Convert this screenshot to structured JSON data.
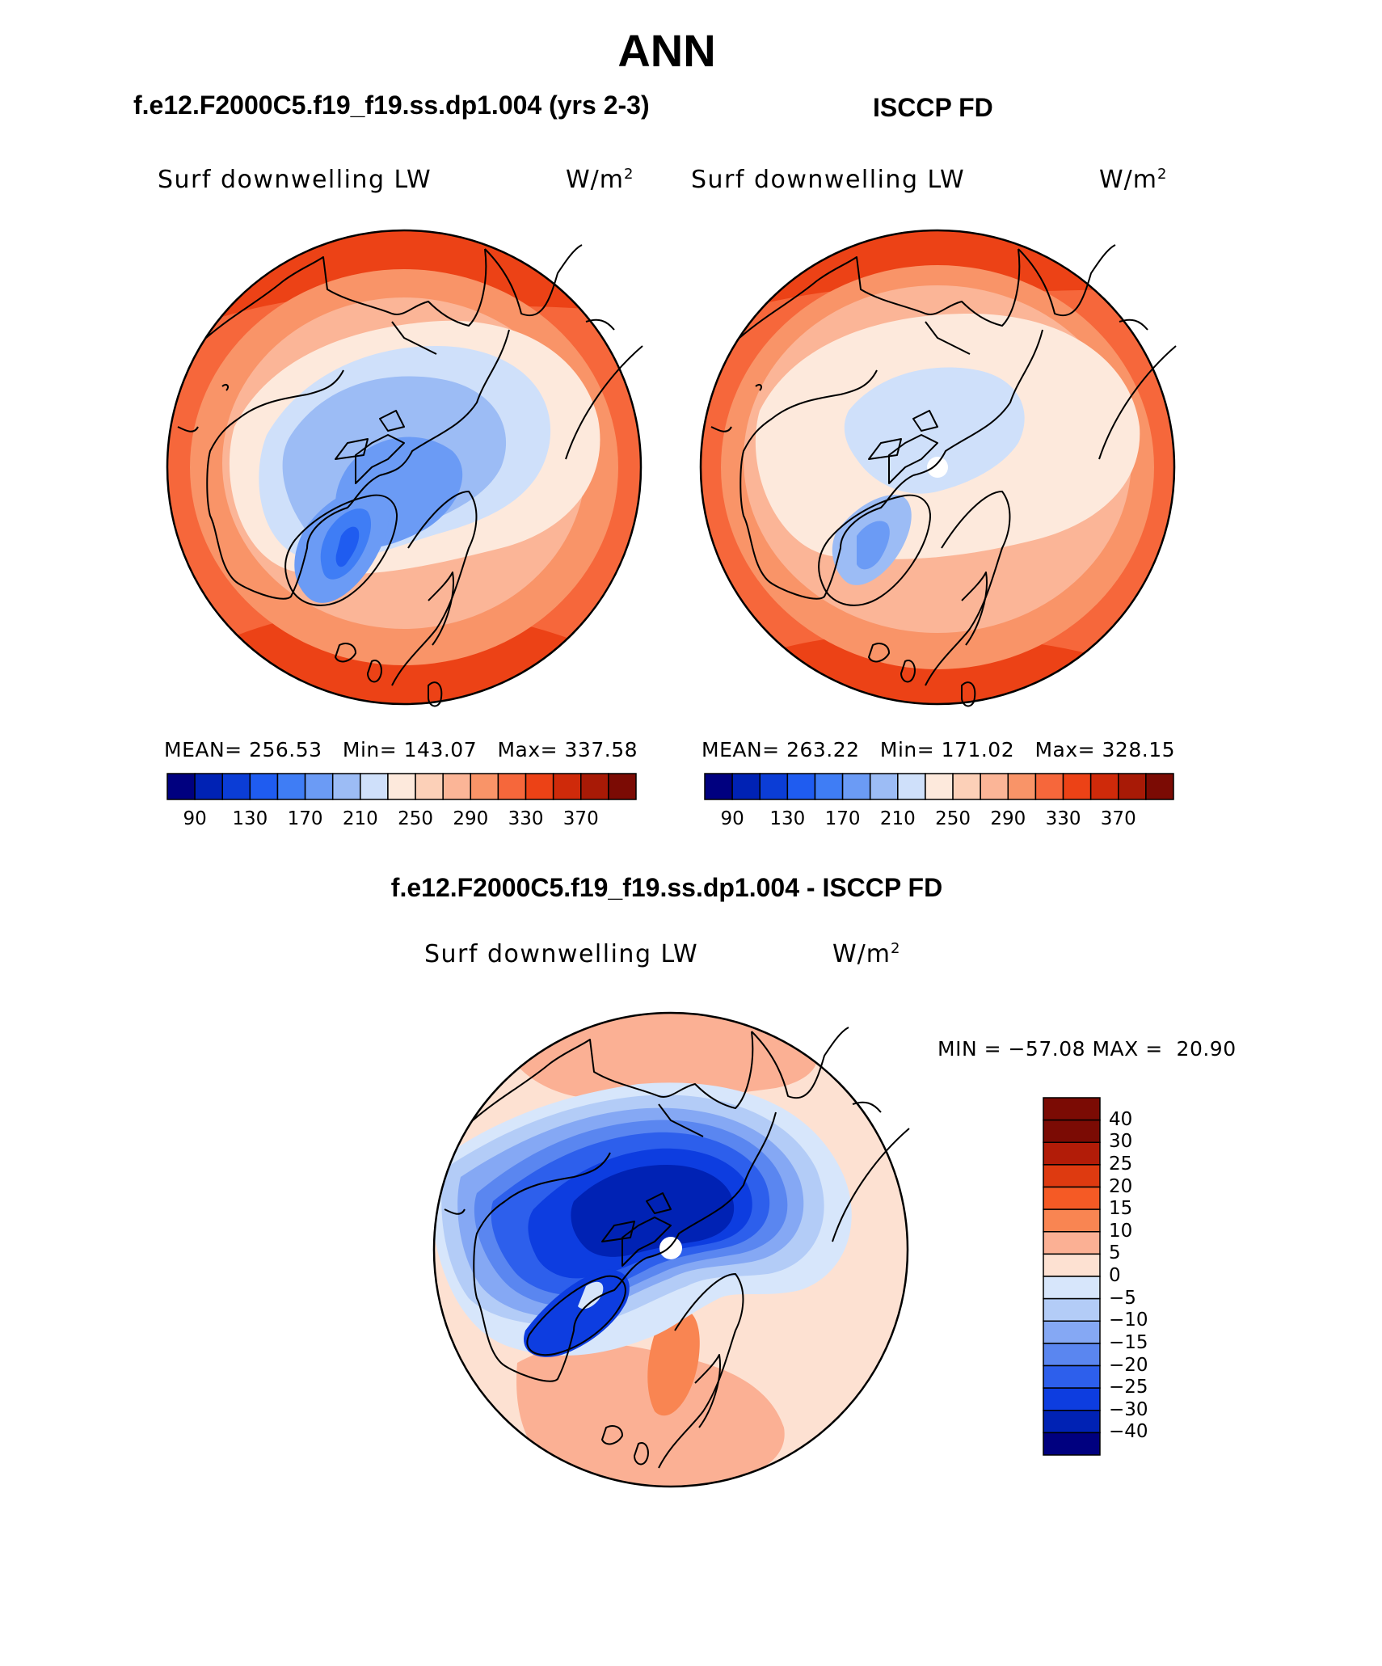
{
  "header": {
    "season": "ANN",
    "left_case": "f.e12.F2000C5.f19_f19.ss.dp1.004 (yrs 2-3)",
    "right_case": "ISCCP FD",
    "diff_case": "f.e12.F2000C5.f19_f19.ss.dp1.004 - ISCCP FD"
  },
  "panels": [
    {
      "name": "model",
      "variable": "Surf downwelling LW",
      "units": "W/m",
      "units_exp": "2",
      "stats": "MEAN= 256.53   Min= 143.07   Max= 337.58"
    },
    {
      "name": "obs",
      "variable": "Surf downwelling LW",
      "units": "W/m",
      "units_exp": "2",
      "stats": "MEAN= 263.22   Min= 171.02   Max= 328.15"
    },
    {
      "name": "diff",
      "variable": "Surf downwelling LW",
      "units": "W/m",
      "units_exp": "2",
      "stats": "MIN = −57.08 MAX =  20.90"
    }
  ],
  "abs_colorbar": {
    "colors": [
      "#00007f",
      "#0022b4",
      "#0b3dd6",
      "#1f5cf0",
      "#3f7df5",
      "#6b9bf5",
      "#9cbcf5",
      "#cfe0fa",
      "#fde9dc",
      "#fcd0b8",
      "#fbb597",
      "#f99468",
      "#f6673b",
      "#ec4216",
      "#cf2a0a",
      "#a81a06",
      "#7b0b04"
    ],
    "tick_labels": [
      "90",
      "130",
      "170",
      "210",
      "250",
      "290",
      "330",
      "370"
    ]
  },
  "diff_colorbar": {
    "colors": [
      "#7b0b04",
      "#b21c08",
      "#de3a10",
      "#f55a25",
      "#f98552",
      "#fbb094",
      "#fde1d2",
      "#d7e6fb",
      "#b3ccf7",
      "#85a8f4",
      "#5a86f0",
      "#2d5fec",
      "#0d3de0",
      "#0022b4",
      "#00007f"
    ],
    "tick_labels": [
      "40",
      "30",
      "25",
      "20",
      "15",
      "10",
      "5",
      "0",
      "−5",
      "−10",
      "−15",
      "−20",
      "−25",
      "−30",
      "−40"
    ]
  },
  "legend_icons": {
    "pole": "white-pole-circle",
    "coast": "coastline-outline"
  }
}
